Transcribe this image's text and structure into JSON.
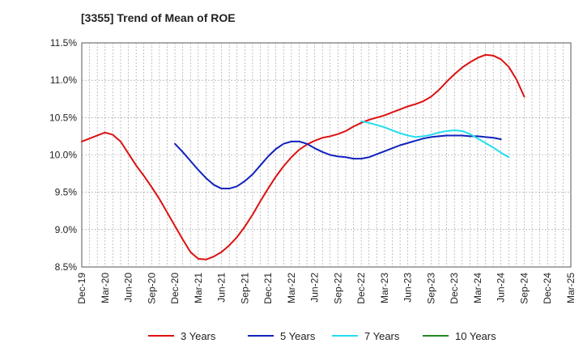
{
  "chart_data": {
    "type": "line",
    "title": "[3355]  Trend of Mean of ROE",
    "xlabel": "",
    "ylabel": "",
    "ylim": [
      8.5,
      11.5
    ],
    "grid": true,
    "legend_position": "bottom",
    "y_ticks": [
      8.5,
      9.0,
      9.5,
      10.0,
      10.5,
      11.0,
      11.5
    ],
    "y_tick_labels": [
      "8.5%",
      "9.0%",
      "9.5%",
      "10.0%",
      "10.5%",
      "11.0%",
      "11.5%"
    ],
    "x_ticks": [
      "Dec-19",
      "Mar-20",
      "Jun-20",
      "Sep-20",
      "Dec-20",
      "Mar-21",
      "Jun-21",
      "Sep-21",
      "Dec-21",
      "Mar-22",
      "Jun-22",
      "Sep-22",
      "Dec-22",
      "Mar-23",
      "Jun-23",
      "Sep-23",
      "Dec-23",
      "Mar-24",
      "Jun-24",
      "Sep-24",
      "Dec-24",
      "Mar-25"
    ],
    "series": [
      {
        "name": "3 Years",
        "color": "#dd1111",
        "start_index": 0,
        "values": [
          10.18,
          10.22,
          10.26,
          10.3,
          10.27,
          10.18,
          10.02,
          9.86,
          9.72,
          9.57,
          9.41,
          9.23,
          9.05,
          8.87,
          8.7,
          8.61,
          8.6,
          8.64,
          8.7,
          8.79,
          8.9,
          9.04,
          9.2,
          9.38,
          9.55,
          9.71,
          9.85,
          9.97,
          10.07,
          10.14,
          10.19,
          10.23,
          10.25,
          10.28,
          10.32,
          10.38,
          10.43,
          10.47,
          10.5,
          10.53,
          10.57,
          10.61,
          10.65,
          10.68,
          10.72,
          10.78,
          10.87,
          10.98,
          11.08,
          11.17,
          11.24,
          11.3,
          11.34,
          11.33,
          11.28,
          11.18,
          11.01,
          10.78
        ]
      },
      {
        "name": "5 Years",
        "color": "#1122bb",
        "start_index": 12,
        "values": [
          10.15,
          10.04,
          9.92,
          9.8,
          9.69,
          9.6,
          9.55,
          9.55,
          9.58,
          9.65,
          9.74,
          9.86,
          9.98,
          10.08,
          10.15,
          10.18,
          10.18,
          10.15,
          10.09,
          10.04,
          10.0,
          9.98,
          9.97,
          9.95,
          9.95,
          9.97,
          10.01,
          10.05,
          10.09,
          10.13,
          10.16,
          10.19,
          10.22,
          10.24,
          10.25,
          10.26,
          10.26,
          10.26,
          10.25,
          10.25,
          10.24,
          10.23,
          10.21
        ]
      },
      {
        "name": "7 Years",
        "color": "#22ddee",
        "start_index": 36,
        "values": [
          10.45,
          10.43,
          10.4,
          10.37,
          10.33,
          10.29,
          10.26,
          10.24,
          10.25,
          10.27,
          10.3,
          10.32,
          10.33,
          10.32,
          10.28,
          10.22,
          10.16,
          10.1,
          10.03,
          9.97
        ]
      },
      {
        "name": "10 Years",
        "color": "#228822",
        "start_index": 0,
        "values": []
      }
    ]
  }
}
